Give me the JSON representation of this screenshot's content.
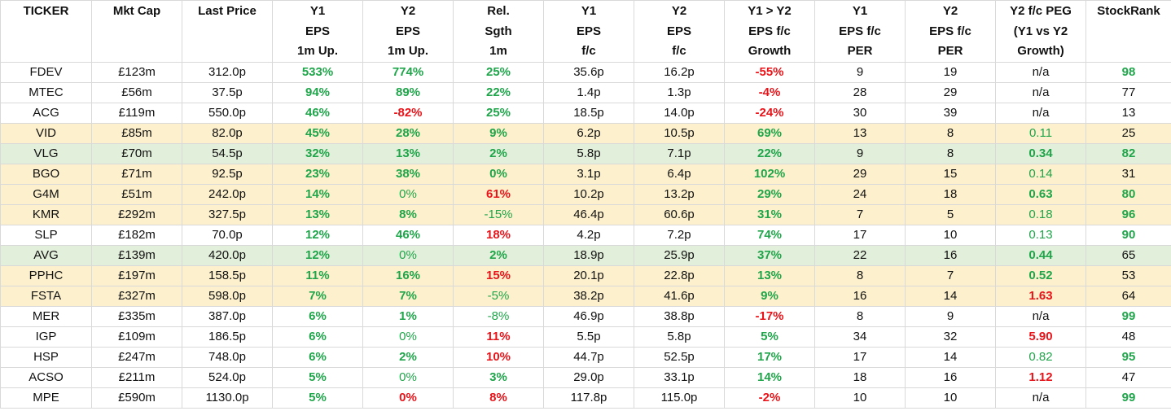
{
  "colors": {
    "positive": "#1fa54a",
    "negative": "#e8141a",
    "neutral": "#111111",
    "highlight_yellow": "#fdf0cc",
    "highlight_green": "#e2efda",
    "grid": "#d9d9d9"
  },
  "headers": [
    [
      "TICKER"
    ],
    [
      "Mkt Cap"
    ],
    [
      "Last Price"
    ],
    [
      "Y1",
      "EPS",
      "1m Up."
    ],
    [
      "Y2",
      "EPS",
      "1m Up."
    ],
    [
      "Rel.",
      "Sgth",
      "1m"
    ],
    [
      "Y1",
      "EPS",
      "f/c"
    ],
    [
      "Y2",
      "EPS",
      "f/c"
    ],
    [
      "Y1 > Y2",
      "EPS f/c",
      "Growth"
    ],
    [
      "Y1",
      "EPS f/c",
      "PER"
    ],
    [
      "Y2",
      "EPS f/c",
      "PER"
    ],
    [
      "Y2 f/c PEG",
      "(Y1 vs Y2",
      "Growth)"
    ],
    [
      "StockRank"
    ]
  ],
  "rows": [
    {
      "bg": "none",
      "cells": [
        {
          "v": "FDEV",
          "s": "plain"
        },
        {
          "v": "£123m",
          "s": "plain"
        },
        {
          "v": "312.0p",
          "s": "plain"
        },
        {
          "v": "533%",
          "s": "pos"
        },
        {
          "v": "774%",
          "s": "pos"
        },
        {
          "v": "25%",
          "s": "pos"
        },
        {
          "v": "35.6p",
          "s": "plain"
        },
        {
          "v": "16.2p",
          "s": "plain"
        },
        {
          "v": "-55%",
          "s": "neg"
        },
        {
          "v": "9",
          "s": "plain"
        },
        {
          "v": "19",
          "s": "plain"
        },
        {
          "v": "n/a",
          "s": "plain"
        },
        {
          "v": "98",
          "s": "pos"
        }
      ]
    },
    {
      "bg": "none",
      "cells": [
        {
          "v": "MTEC",
          "s": "plain"
        },
        {
          "v": "£56m",
          "s": "plain"
        },
        {
          "v": "37.5p",
          "s": "plain"
        },
        {
          "v": "94%",
          "s": "pos"
        },
        {
          "v": "89%",
          "s": "pos"
        },
        {
          "v": "22%",
          "s": "pos"
        },
        {
          "v": "1.4p",
          "s": "plain"
        },
        {
          "v": "1.3p",
          "s": "plain"
        },
        {
          "v": "-4%",
          "s": "neg"
        },
        {
          "v": "28",
          "s": "plain"
        },
        {
          "v": "29",
          "s": "plain"
        },
        {
          "v": "n/a",
          "s": "plain"
        },
        {
          "v": "77",
          "s": "plain"
        }
      ]
    },
    {
      "bg": "none",
      "cells": [
        {
          "v": "ACG",
          "s": "plain"
        },
        {
          "v": "£119m",
          "s": "plain"
        },
        {
          "v": "550.0p",
          "s": "plain"
        },
        {
          "v": "46%",
          "s": "pos"
        },
        {
          "v": "-82%",
          "s": "neg"
        },
        {
          "v": "25%",
          "s": "pos"
        },
        {
          "v": "18.5p",
          "s": "plain"
        },
        {
          "v": "14.0p",
          "s": "plain"
        },
        {
          "v": "-24%",
          "s": "neg"
        },
        {
          "v": "30",
          "s": "plain"
        },
        {
          "v": "39",
          "s": "plain"
        },
        {
          "v": "n/a",
          "s": "plain"
        },
        {
          "v": "13",
          "s": "plain"
        }
      ]
    },
    {
      "bg": "yellow",
      "cells": [
        {
          "v": "VID",
          "s": "plain"
        },
        {
          "v": "£85m",
          "s": "plain"
        },
        {
          "v": "82.0p",
          "s": "plain"
        },
        {
          "v": "45%",
          "s": "pos"
        },
        {
          "v": "28%",
          "s": "pos"
        },
        {
          "v": "9%",
          "s": "pos"
        },
        {
          "v": "6.2p",
          "s": "plain"
        },
        {
          "v": "10.5p",
          "s": "plain"
        },
        {
          "v": "69%",
          "s": "pos"
        },
        {
          "v": "13",
          "s": "plain"
        },
        {
          "v": "8",
          "s": "plain"
        },
        {
          "v": "0.11",
          "s": "posn"
        },
        {
          "v": "25",
          "s": "plain"
        }
      ]
    },
    {
      "bg": "green",
      "cells": [
        {
          "v": "VLG",
          "s": "plain"
        },
        {
          "v": "£70m",
          "s": "plain"
        },
        {
          "v": "54.5p",
          "s": "plain"
        },
        {
          "v": "32%",
          "s": "pos"
        },
        {
          "v": "13%",
          "s": "pos"
        },
        {
          "v": "2%",
          "s": "pos"
        },
        {
          "v": "5.8p",
          "s": "plain"
        },
        {
          "v": "7.1p",
          "s": "plain"
        },
        {
          "v": "22%",
          "s": "pos"
        },
        {
          "v": "9",
          "s": "plain"
        },
        {
          "v": "8",
          "s": "plain"
        },
        {
          "v": "0.34",
          "s": "pos"
        },
        {
          "v": "82",
          "s": "pos"
        }
      ]
    },
    {
      "bg": "yellow",
      "cells": [
        {
          "v": "BGO",
          "s": "plain"
        },
        {
          "v": "£71m",
          "s": "plain"
        },
        {
          "v": "92.5p",
          "s": "plain"
        },
        {
          "v": "23%",
          "s": "pos"
        },
        {
          "v": "38%",
          "s": "pos"
        },
        {
          "v": "0%",
          "s": "pos"
        },
        {
          "v": "3.1p",
          "s": "plain"
        },
        {
          "v": "6.4p",
          "s": "plain"
        },
        {
          "v": "102%",
          "s": "pos"
        },
        {
          "v": "29",
          "s": "plain"
        },
        {
          "v": "15",
          "s": "plain"
        },
        {
          "v": "0.14",
          "s": "posn"
        },
        {
          "v": "31",
          "s": "plain"
        }
      ]
    },
    {
      "bg": "yellow",
      "cells": [
        {
          "v": "G4M",
          "s": "plain"
        },
        {
          "v": "£51m",
          "s": "plain"
        },
        {
          "v": "242.0p",
          "s": "plain"
        },
        {
          "v": "14%",
          "s": "pos"
        },
        {
          "v": "0%",
          "s": "posn"
        },
        {
          "v": "61%",
          "s": "neg"
        },
        {
          "v": "10.2p",
          "s": "plain"
        },
        {
          "v": "13.2p",
          "s": "plain"
        },
        {
          "v": "29%",
          "s": "pos"
        },
        {
          "v": "24",
          "s": "plain"
        },
        {
          "v": "18",
          "s": "plain"
        },
        {
          "v": "0.63",
          "s": "pos"
        },
        {
          "v": "80",
          "s": "pos"
        }
      ]
    },
    {
      "bg": "yellow",
      "cells": [
        {
          "v": "KMR",
          "s": "plain"
        },
        {
          "v": "£292m",
          "s": "plain"
        },
        {
          "v": "327.5p",
          "s": "plain"
        },
        {
          "v": "13%",
          "s": "pos"
        },
        {
          "v": "8%",
          "s": "pos"
        },
        {
          "v": "-15%",
          "s": "posn"
        },
        {
          "v": "46.4p",
          "s": "plain"
        },
        {
          "v": "60.6p",
          "s": "plain"
        },
        {
          "v": "31%",
          "s": "pos"
        },
        {
          "v": "7",
          "s": "plain"
        },
        {
          "v": "5",
          "s": "plain"
        },
        {
          "v": "0.18",
          "s": "posn"
        },
        {
          "v": "96",
          "s": "pos"
        }
      ]
    },
    {
      "bg": "none",
      "cells": [
        {
          "v": "SLP",
          "s": "plain"
        },
        {
          "v": "£182m",
          "s": "plain"
        },
        {
          "v": "70.0p",
          "s": "plain"
        },
        {
          "v": "12%",
          "s": "pos"
        },
        {
          "v": "46%",
          "s": "pos"
        },
        {
          "v": "18%",
          "s": "neg"
        },
        {
          "v": "4.2p",
          "s": "plain"
        },
        {
          "v": "7.2p",
          "s": "plain"
        },
        {
          "v": "74%",
          "s": "pos"
        },
        {
          "v": "17",
          "s": "plain"
        },
        {
          "v": "10",
          "s": "plain"
        },
        {
          "v": "0.13",
          "s": "posn"
        },
        {
          "v": "90",
          "s": "pos"
        }
      ]
    },
    {
      "bg": "green",
      "cells": [
        {
          "v": "AVG",
          "s": "plain"
        },
        {
          "v": "£139m",
          "s": "plain"
        },
        {
          "v": "420.0p",
          "s": "plain"
        },
        {
          "v": "12%",
          "s": "pos"
        },
        {
          "v": "0%",
          "s": "posn"
        },
        {
          "v": "2%",
          "s": "pos"
        },
        {
          "v": "18.9p",
          "s": "plain"
        },
        {
          "v": "25.9p",
          "s": "plain"
        },
        {
          "v": "37%",
          "s": "pos"
        },
        {
          "v": "22",
          "s": "plain"
        },
        {
          "v": "16",
          "s": "plain"
        },
        {
          "v": "0.44",
          "s": "pos"
        },
        {
          "v": "65",
          "s": "plain"
        }
      ]
    },
    {
      "bg": "yellow",
      "cells": [
        {
          "v": "PPHC",
          "s": "plain"
        },
        {
          "v": "£197m",
          "s": "plain"
        },
        {
          "v": "158.5p",
          "s": "plain"
        },
        {
          "v": "11%",
          "s": "pos"
        },
        {
          "v": "16%",
          "s": "pos"
        },
        {
          "v": "15%",
          "s": "neg"
        },
        {
          "v": "20.1p",
          "s": "plain"
        },
        {
          "v": "22.8p",
          "s": "plain"
        },
        {
          "v": "13%",
          "s": "pos"
        },
        {
          "v": "8",
          "s": "plain"
        },
        {
          "v": "7",
          "s": "plain"
        },
        {
          "v": "0.52",
          "s": "pos"
        },
        {
          "v": "53",
          "s": "plain"
        }
      ]
    },
    {
      "bg": "yellow",
      "cells": [
        {
          "v": "FSTA",
          "s": "plain"
        },
        {
          "v": "£327m",
          "s": "plain"
        },
        {
          "v": "598.0p",
          "s": "plain"
        },
        {
          "v": "7%",
          "s": "pos"
        },
        {
          "v": "7%",
          "s": "pos"
        },
        {
          "v": "-5%",
          "s": "posn"
        },
        {
          "v": "38.2p",
          "s": "plain"
        },
        {
          "v": "41.6p",
          "s": "plain"
        },
        {
          "v": "9%",
          "s": "pos"
        },
        {
          "v": "16",
          "s": "plain"
        },
        {
          "v": "14",
          "s": "plain"
        },
        {
          "v": "1.63",
          "s": "neg"
        },
        {
          "v": "64",
          "s": "plain"
        }
      ]
    },
    {
      "bg": "none",
      "cells": [
        {
          "v": "MER",
          "s": "plain"
        },
        {
          "v": "£335m",
          "s": "plain"
        },
        {
          "v": "387.0p",
          "s": "plain"
        },
        {
          "v": "6%",
          "s": "pos"
        },
        {
          "v": "1%",
          "s": "pos"
        },
        {
          "v": "-8%",
          "s": "posn"
        },
        {
          "v": "46.9p",
          "s": "plain"
        },
        {
          "v": "38.8p",
          "s": "plain"
        },
        {
          "v": "-17%",
          "s": "neg"
        },
        {
          "v": "8",
          "s": "plain"
        },
        {
          "v": "9",
          "s": "plain"
        },
        {
          "v": "n/a",
          "s": "plain"
        },
        {
          "v": "99",
          "s": "pos"
        }
      ]
    },
    {
      "bg": "none",
      "cells": [
        {
          "v": "IGP",
          "s": "plain"
        },
        {
          "v": "£109m",
          "s": "plain"
        },
        {
          "v": "186.5p",
          "s": "plain"
        },
        {
          "v": "6%",
          "s": "pos"
        },
        {
          "v": "0%",
          "s": "posn"
        },
        {
          "v": "11%",
          "s": "neg"
        },
        {
          "v": "5.5p",
          "s": "plain"
        },
        {
          "v": "5.8p",
          "s": "plain"
        },
        {
          "v": "5%",
          "s": "pos"
        },
        {
          "v": "34",
          "s": "plain"
        },
        {
          "v": "32",
          "s": "plain"
        },
        {
          "v": "5.90",
          "s": "neg"
        },
        {
          "v": "48",
          "s": "plain"
        }
      ]
    },
    {
      "bg": "none",
      "cells": [
        {
          "v": "HSP",
          "s": "plain"
        },
        {
          "v": "£247m",
          "s": "plain"
        },
        {
          "v": "748.0p",
          "s": "plain"
        },
        {
          "v": "6%",
          "s": "pos"
        },
        {
          "v": "2%",
          "s": "pos"
        },
        {
          "v": "10%",
          "s": "neg"
        },
        {
          "v": "44.7p",
          "s": "plain"
        },
        {
          "v": "52.5p",
          "s": "plain"
        },
        {
          "v": "17%",
          "s": "pos"
        },
        {
          "v": "17",
          "s": "plain"
        },
        {
          "v": "14",
          "s": "plain"
        },
        {
          "v": "0.82",
          "s": "posn"
        },
        {
          "v": "95",
          "s": "pos"
        }
      ]
    },
    {
      "bg": "none",
      "cells": [
        {
          "v": "ACSO",
          "s": "plain"
        },
        {
          "v": "£211m",
          "s": "plain"
        },
        {
          "v": "524.0p",
          "s": "plain"
        },
        {
          "v": "5%",
          "s": "pos"
        },
        {
          "v": "0%",
          "s": "posn"
        },
        {
          "v": "3%",
          "s": "pos"
        },
        {
          "v": "29.0p",
          "s": "plain"
        },
        {
          "v": "33.1p",
          "s": "plain"
        },
        {
          "v": "14%",
          "s": "pos"
        },
        {
          "v": "18",
          "s": "plain"
        },
        {
          "v": "16",
          "s": "plain"
        },
        {
          "v": "1.12",
          "s": "neg"
        },
        {
          "v": "47",
          "s": "plain"
        }
      ]
    },
    {
      "bg": "none",
      "cells": [
        {
          "v": "MPE",
          "s": "plain"
        },
        {
          "v": "£590m",
          "s": "plain"
        },
        {
          "v": "1130.0p",
          "s": "plain"
        },
        {
          "v": "5%",
          "s": "pos"
        },
        {
          "v": "0%",
          "s": "neg"
        },
        {
          "v": "8%",
          "s": "neg"
        },
        {
          "v": "117.8p",
          "s": "plain"
        },
        {
          "v": "115.0p",
          "s": "plain"
        },
        {
          "v": "-2%",
          "s": "neg"
        },
        {
          "v": "10",
          "s": "plain"
        },
        {
          "v": "10",
          "s": "plain"
        },
        {
          "v": "n/a",
          "s": "plain"
        },
        {
          "v": "99",
          "s": "pos"
        }
      ]
    }
  ]
}
